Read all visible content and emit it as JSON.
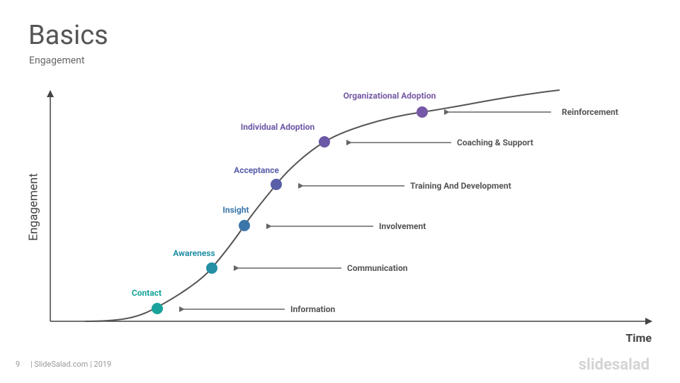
{
  "header": {
    "title": "Basics",
    "subtitle": "Engagement"
  },
  "axes": {
    "y_label": "Engagement",
    "x_label": "Time"
  },
  "stages": [
    {
      "label": "Contact",
      "color": "#17a39b",
      "note": "Information"
    },
    {
      "label": "Awareness",
      "color": "#2590a6",
      "note": "Communication"
    },
    {
      "label": "Insight",
      "color": "#3b76aa",
      "note": "Involvement"
    },
    {
      "label": "Acceptance",
      "color": "#5a5ea8",
      "note": "Training And Development"
    },
    {
      "label": "Individual Adoption",
      "color": "#6c58a6",
      "note": "Coaching & Support"
    },
    {
      "label": "Organizational Adoption",
      "color": "#7659a6",
      "note": "Reinforcement"
    }
  ],
  "footer": {
    "page": "9",
    "text": "| SlideSalad.com | 2019",
    "logo": "slidesalad"
  }
}
